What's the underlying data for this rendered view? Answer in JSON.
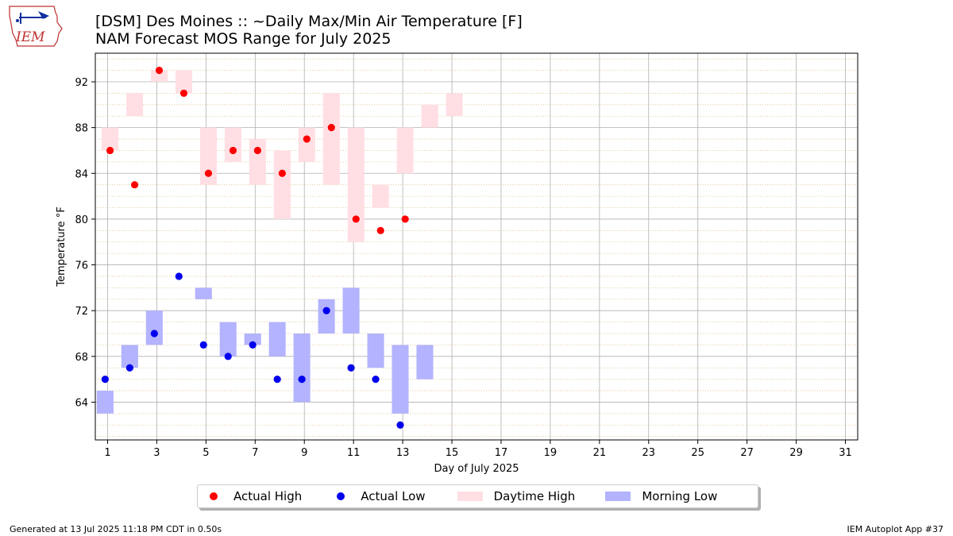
{
  "logo": {
    "text": "IEM"
  },
  "title": {
    "line1": "[DSM] Des Moines :: ~Daily Max/Min Air Temperature [F]",
    "line2": "NAM Forecast MOS Range for July 2025"
  },
  "footer": {
    "left": "Generated at 13 Jul 2025 11:18 PM CDT in 0.50s",
    "right": "IEM Autoplot App #37"
  },
  "colors": {
    "high_point": "#ff0000",
    "low_point": "#0000ee",
    "high_range": "#ffdfe4",
    "low_range": "#b3b3ff",
    "grid": "#b0b0b0",
    "minor_grid": "#d4b36b"
  },
  "chart_data": {
    "type": "bar",
    "xlabel": "Day of July 2025",
    "ylabel": "Temperature °F",
    "xlim": [
      0.5,
      31.5
    ],
    "ylim": [
      60.7,
      94.5
    ],
    "xticks": [
      1,
      3,
      5,
      7,
      9,
      11,
      13,
      15,
      17,
      19,
      21,
      23,
      25,
      27,
      29,
      31
    ],
    "yticks": [
      64,
      68,
      72,
      76,
      80,
      84,
      88,
      92
    ],
    "grid": true,
    "legend_position": "below",
    "legend": [
      "Actual High",
      "Actual Low",
      "Daytime High",
      "Morning Low"
    ],
    "series": [
      {
        "name": "Daytime High",
        "kind": "range",
        "days": [
          1,
          2,
          3,
          4,
          5,
          6,
          7,
          8,
          9,
          10,
          11,
          12,
          13,
          14,
          15
        ],
        "low": [
          86,
          89,
          92,
          91,
          83,
          85,
          83,
          80,
          85,
          83,
          78,
          81,
          84,
          88,
          89
        ],
        "high": [
          88,
          91,
          93,
          93,
          88,
          88,
          87,
          86,
          88,
          91,
          88,
          83,
          88,
          90,
          91
        ]
      },
      {
        "name": "Morning Low",
        "kind": "range",
        "days": [
          1,
          2,
          3,
          4,
          5,
          6,
          7,
          8,
          9,
          10,
          11,
          12,
          13,
          14
        ],
        "low": [
          63,
          67,
          69,
          null,
          73,
          68,
          69,
          68,
          64,
          70,
          70,
          67,
          63,
          66
        ],
        "high": [
          65,
          69,
          72,
          null,
          74,
          71,
          70,
          71,
          70,
          73,
          74,
          70,
          69,
          69
        ]
      },
      {
        "name": "Actual High",
        "kind": "point",
        "days": [
          1,
          2,
          3,
          4,
          5,
          6,
          7,
          8,
          9,
          10,
          11,
          12,
          13
        ],
        "values": [
          86,
          83,
          93,
          91,
          84,
          86,
          86,
          84,
          87,
          88,
          80,
          79,
          80
        ]
      },
      {
        "name": "Actual Low",
        "kind": "point",
        "days": [
          1,
          2,
          3,
          4,
          5,
          6,
          7,
          8,
          9,
          10,
          11,
          12,
          13
        ],
        "values": [
          66,
          67,
          70,
          75,
          69,
          68,
          69,
          66,
          66,
          72,
          67,
          66,
          62
        ]
      }
    ]
  }
}
